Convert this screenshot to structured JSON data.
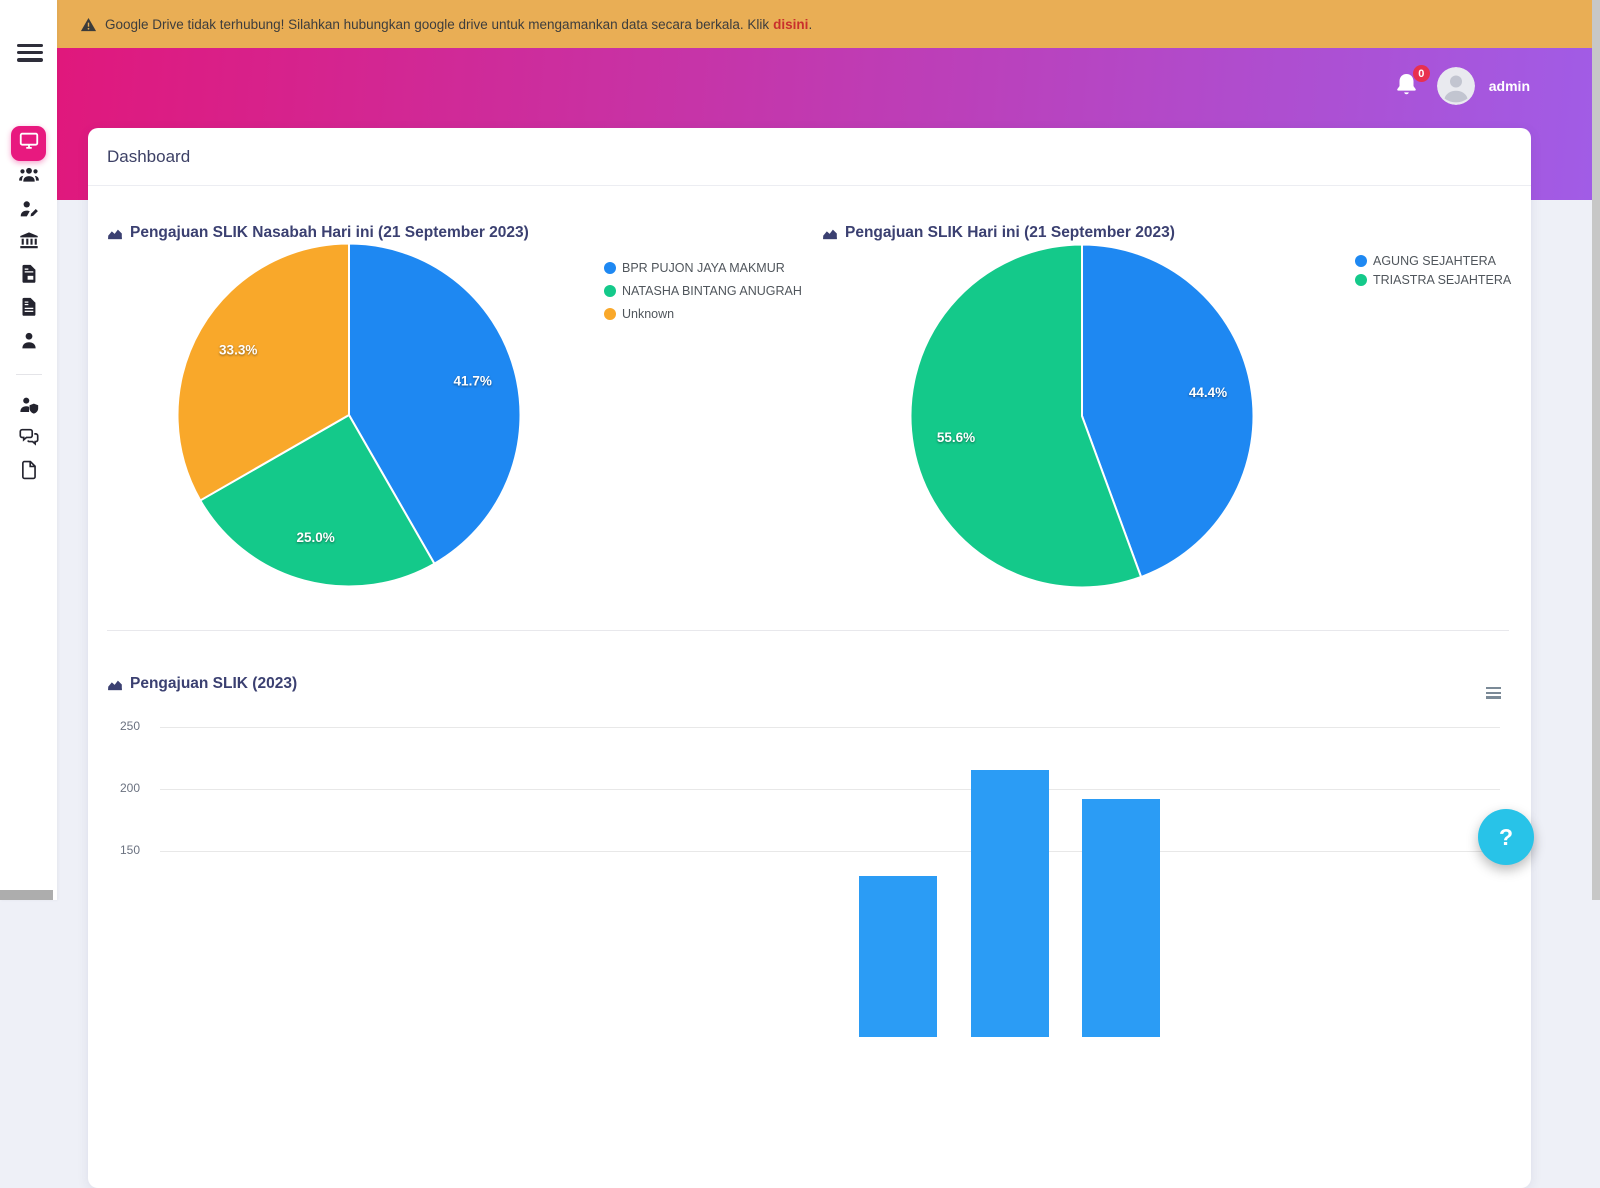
{
  "banner": {
    "icon": "warning-triangle-icon",
    "message": "Google Drive tidak terhubung! Silahkan hubungkan google drive untuk mengamankan data secara berkala. Klik",
    "link_label": "disini",
    "suffix": ".",
    "bg_color": "#e9ae55",
    "link_color": "#c9302c"
  },
  "header": {
    "notification_count": "0",
    "username": "admin",
    "gradient_start": "#e0187c",
    "gradient_end": "#a15ce6",
    "badge_color": "#e8304f"
  },
  "sidebar": {
    "menu_icon": "hamburger-menu-icon",
    "active_color": "#e8197f",
    "items": [
      {
        "icon": "monitor-dashboard-icon",
        "active": true
      },
      {
        "icon": "users-icon",
        "active": false
      },
      {
        "icon": "user-edit-icon",
        "active": false
      },
      {
        "icon": "bank-icon",
        "active": false
      },
      {
        "icon": "file-invoice-icon",
        "active": false
      },
      {
        "icon": "file-contract-icon",
        "active": false
      },
      {
        "icon": "user-icon",
        "active": false
      },
      {
        "icon": "user-shield-icon",
        "active": false
      },
      {
        "icon": "comments-icon",
        "active": false
      },
      {
        "icon": "file-blank-icon",
        "active": false
      }
    ]
  },
  "page": {
    "title": "Dashboard"
  },
  "chart_data": [
    {
      "type": "pie",
      "title": "Pengajuan SLIK Nasabah Hari ini (21 September 2023)",
      "slices": [
        {
          "label": "BPR PUJON JAYA MAKMUR",
          "percent": 41.7,
          "color": "#1e88f2"
        },
        {
          "label": "NATASHA BINTANG ANUGRAH",
          "percent": 25.0,
          "color": "#14c98a"
        },
        {
          "label": "Unknown",
          "percent": 33.3,
          "color": "#f9a82a"
        }
      ],
      "legend_position": "right",
      "data_label_format": "percent"
    },
    {
      "type": "pie",
      "title": "Pengajuan SLIK Hari ini (21 September 2023)",
      "slices": [
        {
          "label": "AGUNG SEJAHTERA",
          "percent": 44.4,
          "color": "#1e88f2"
        },
        {
          "label": "TRIASTRA SEJAHTERA",
          "percent": 55.6,
          "color": "#14c98a"
        }
      ],
      "legend_position": "right",
      "data_label_format": "percent"
    },
    {
      "type": "bar",
      "title": "Pengajuan SLIK (2023)",
      "bar_color": "#2b9cf5",
      "y_ticks_visible": [
        250,
        200,
        150
      ],
      "y_max": 250,
      "num_slots": 12,
      "bars": [
        {
          "slot": 6,
          "value": 130
        },
        {
          "slot": 7,
          "value": 215
        },
        {
          "slot": 8,
          "value": 192
        }
      ],
      "x_axis_labels_visible": false,
      "grid": "horizontal",
      "note": "lower part of chart cut off by viewport"
    }
  ],
  "help_button": {
    "label": "?",
    "color": "#28c3e8"
  }
}
